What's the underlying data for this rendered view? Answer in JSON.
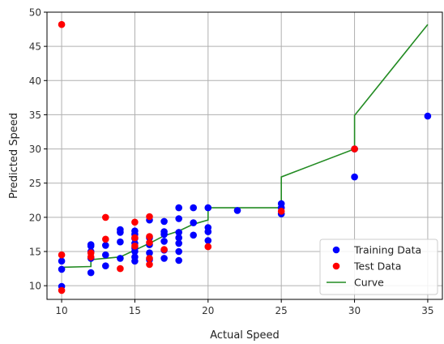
{
  "chart_data": {
    "type": "scatter",
    "xlabel": "Actual Speed",
    "ylabel": "Predicted Speed",
    "xlim": [
      9,
      36
    ],
    "ylim": [
      8,
      50
    ],
    "xticks": [
      10,
      15,
      20,
      25,
      30,
      35
    ],
    "yticks": [
      10,
      15,
      20,
      25,
      30,
      35,
      40,
      45,
      50
    ],
    "grid": true,
    "legend": {
      "placement": "bottom-right",
      "entries": [
        "Training Data",
        "Test Data",
        "Curve"
      ]
    },
    "series": [
      {
        "name": "Training Data",
        "kind": "scatter",
        "color": "#0000ff",
        "points": [
          [
            10,
            9.9
          ],
          [
            10,
            12.4
          ],
          [
            10,
            13.6
          ],
          [
            12,
            11.9
          ],
          [
            12,
            14.0
          ],
          [
            12,
            15.0
          ],
          [
            12,
            15.8
          ],
          [
            12,
            16.0
          ],
          [
            13,
            12.9
          ],
          [
            13,
            14.5
          ],
          [
            13,
            15.9
          ],
          [
            14,
            14.0
          ],
          [
            14,
            16.4
          ],
          [
            14,
            17.8
          ],
          [
            14,
            18.2
          ],
          [
            15,
            13.6
          ],
          [
            15,
            14.2
          ],
          [
            15,
            15.0
          ],
          [
            15,
            15.5
          ],
          [
            15,
            16.2
          ],
          [
            15,
            16.9
          ],
          [
            15,
            17.5
          ],
          [
            15,
            18.0
          ],
          [
            16,
            13.8
          ],
          [
            16,
            14.8
          ],
          [
            16,
            16.0
          ],
          [
            16,
            17.0
          ],
          [
            16,
            19.6
          ],
          [
            17,
            14.0
          ],
          [
            17,
            15.2
          ],
          [
            17,
            16.5
          ],
          [
            17,
            17.5
          ],
          [
            17,
            17.9
          ],
          [
            17,
            19.4
          ],
          [
            18,
            13.7
          ],
          [
            18,
            15.0
          ],
          [
            18,
            16.2
          ],
          [
            18,
            17.0
          ],
          [
            18,
            17.8
          ],
          [
            18,
            19.8
          ],
          [
            18,
            21.4
          ],
          [
            19,
            17.4
          ],
          [
            19,
            19.2
          ],
          [
            19,
            21.4
          ],
          [
            20,
            16.6
          ],
          [
            20,
            17.9
          ],
          [
            20,
            18.5
          ],
          [
            20,
            21.4
          ],
          [
            22,
            21.0
          ],
          [
            25,
            20.5
          ],
          [
            25,
            21.4
          ],
          [
            25,
            22.0
          ],
          [
            30,
            25.9
          ],
          [
            30,
            30.0
          ],
          [
            35,
            34.8
          ]
        ]
      },
      {
        "name": "Test Data",
        "kind": "scatter",
        "color": "#ff0000",
        "points": [
          [
            10,
            48.2
          ],
          [
            10,
            14.5
          ],
          [
            10,
            9.3
          ],
          [
            12,
            14.2
          ],
          [
            12,
            14.8
          ],
          [
            13,
            20.0
          ],
          [
            13,
            16.8
          ],
          [
            14,
            12.5
          ],
          [
            15,
            19.3
          ],
          [
            15,
            17.0
          ],
          [
            15,
            15.8
          ],
          [
            16,
            20.1
          ],
          [
            16,
            17.2
          ],
          [
            16,
            16.3
          ],
          [
            16,
            14.0
          ],
          [
            16,
            13.1
          ],
          [
            17,
            15.3
          ],
          [
            20,
            15.7
          ],
          [
            25,
            20.9
          ],
          [
            30,
            30.0
          ]
        ]
      },
      {
        "name": "Curve",
        "kind": "line",
        "color": "#228b22",
        "points": [
          [
            10,
            12.7
          ],
          [
            12,
            12.8
          ],
          [
            12,
            13.8
          ],
          [
            14,
            14.2
          ],
          [
            15,
            15.2
          ],
          [
            16,
            16.2
          ],
          [
            17,
            17.3
          ],
          [
            18,
            18.0
          ],
          [
            19,
            19.0
          ],
          [
            20,
            19.6
          ],
          [
            20,
            21.4
          ],
          [
            22,
            21.4
          ],
          [
            25,
            21.4
          ],
          [
            25,
            25.9
          ],
          [
            30,
            30.0
          ],
          [
            30,
            34.9
          ],
          [
            35,
            48.2
          ]
        ]
      }
    ]
  }
}
